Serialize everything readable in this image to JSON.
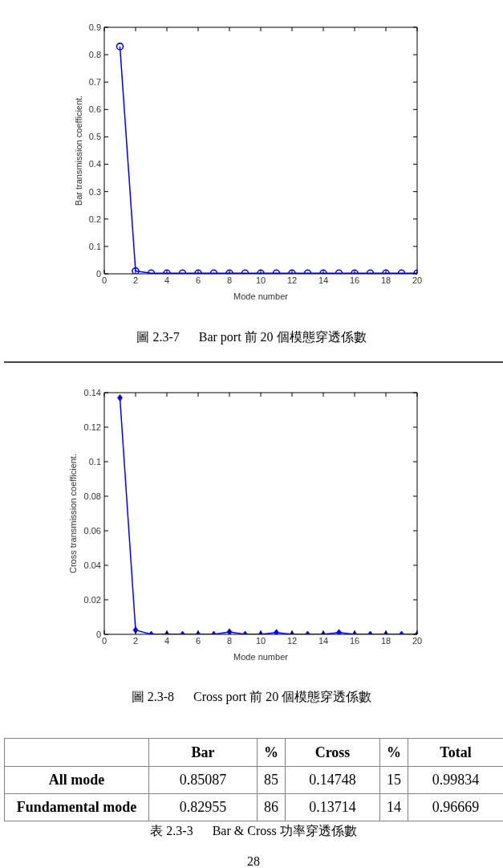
{
  "chart_data": [
    {
      "type": "line",
      "xlabel": "Mode number",
      "ylabel": "Bar transmission coefficient.",
      "x": [
        1,
        2,
        3,
        4,
        5,
        6,
        7,
        8,
        9,
        10,
        11,
        12,
        13,
        14,
        15,
        16,
        17,
        18,
        19,
        20
      ],
      "series": [
        {
          "color": "#0000ff",
          "values": [
            0.83,
            0.01,
            0.002,
            0.002,
            0.002,
            0.002,
            0.002,
            0.002,
            0.002,
            0.002,
            0.002,
            0.002,
            0.002,
            0.002,
            0.002,
            0.002,
            0.002,
            0.002,
            0.002,
            0.002
          ]
        }
      ],
      "xlim": [
        0,
        20
      ],
      "xticks": [
        0,
        2,
        4,
        6,
        8,
        10,
        12,
        14,
        16,
        18,
        20
      ],
      "ylim": [
        0,
        0.9
      ],
      "yticks": [
        0,
        0.1,
        0.2,
        0.3,
        0.4,
        0.5,
        0.6,
        0.7,
        0.8,
        0.9
      ],
      "marker": "circle",
      "line_style": "solid",
      "annotations": [
        "圖 2.3-7      Bar port 前 20 個模態穿透係數"
      ]
    },
    {
      "type": "line",
      "xlabel": "Mode number",
      "ylabel": "Cross transmission coefficient.",
      "x": [
        1,
        2,
        3,
        4,
        5,
        6,
        7,
        8,
        9,
        10,
        11,
        12,
        13,
        14,
        15,
        16,
        17,
        18,
        19,
        20
      ],
      "series": [
        {
          "color": "#0000ff",
          "values": [
            0.137,
            0.0025,
            0,
            0,
            0,
            0,
            0,
            0.0014,
            0,
            0,
            0.001,
            0,
            0,
            0,
            0.001,
            0,
            0,
            0,
            0,
            0
          ]
        }
      ],
      "xlim": [
        0,
        20
      ],
      "xticks": [
        0,
        2,
        4,
        6,
        8,
        10,
        12,
        14,
        16,
        18,
        20
      ],
      "ylim": [
        0,
        0.14
      ],
      "yticks": [
        0,
        0.02,
        0.04,
        0.06,
        0.08,
        0.1,
        0.12,
        0.14
      ],
      "marker": "diamond",
      "line_style": "solid",
      "annotations": [
        "圖 2.3-8      Cross port 前 20 個模態穿透係數"
      ]
    },
    {
      "type": "heatmap",
      "categories": [
        "Bar",
        "%",
        "Cross",
        "%",
        "Total"
      ],
      "y_categories": [
        "All mode",
        "Fundamental mode"
      ],
      "cells": [
        [
          0.85087,
          85,
          0.14748,
          15,
          0.99834
        ],
        [
          0.82955,
          86,
          0.13714,
          14,
          0.96669
        ]
      ],
      "data_labels": true,
      "annotations": [
        "表 2.3-3      Bar & Cross 功率穿透係數",
        "28"
      ]
    }
  ]
}
